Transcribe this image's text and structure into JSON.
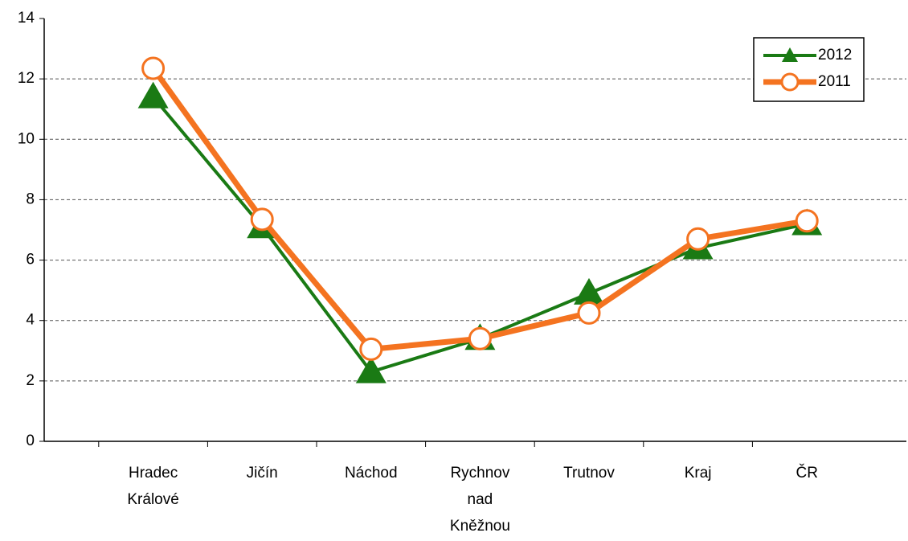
{
  "chart_data": {
    "type": "line",
    "categories": [
      "Hradec Králové",
      "Jičín",
      "Náchod",
      "Rychnov nad Kněžnou",
      "Trutnov",
      "Kraj",
      "ČR"
    ],
    "series": [
      {
        "name": "2012",
        "color": "#1a7a14",
        "marker": "triangle",
        "values": [
          11.4,
          7.1,
          2.3,
          3.4,
          4.9,
          6.4,
          7.2
        ]
      },
      {
        "name": "2011",
        "color": "#f47320",
        "marker": "circle",
        "values": [
          12.35,
          7.35,
          3.05,
          3.4,
          4.25,
          6.7,
          7.3
        ]
      }
    ],
    "ylim": [
      0,
      14
    ],
    "yticks": [
      0,
      2,
      4,
      6,
      8,
      10,
      12,
      14
    ],
    "grid": true,
    "legend": "top-right"
  }
}
